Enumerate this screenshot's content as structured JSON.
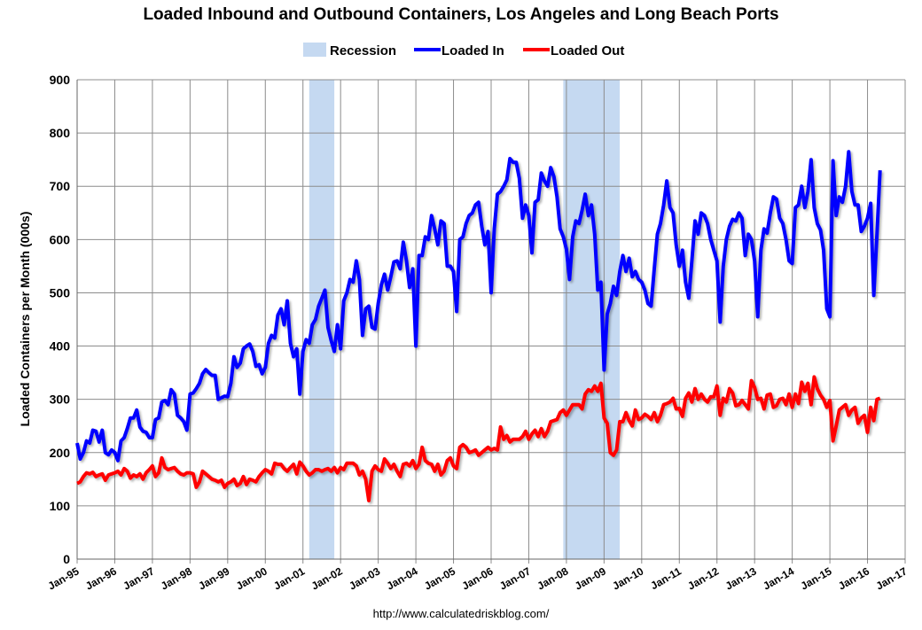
{
  "chart_data": {
    "type": "line",
    "title": "Loaded Inbound and Outbound Containers, Los Angeles and Long Beach Ports",
    "ylabel": "Loaded Containers per Month (000s)",
    "xlabel": "",
    "ylim": [
      0,
      900
    ],
    "yticks": [
      0,
      100,
      200,
      300,
      400,
      500,
      600,
      700,
      800,
      900
    ],
    "xticks": [
      "Jan-95",
      "Jan-96",
      "Jan-97",
      "Jan-98",
      "Jan-99",
      "Jan-00",
      "Jan-01",
      "Jan-02",
      "Jan-03",
      "Jan-04",
      "Jan-05",
      "Jan-06",
      "Jan-07",
      "Jan-08",
      "Jan-09",
      "Jan-10",
      "Jan-11",
      "Jan-12",
      "Jan-13",
      "Jan-14",
      "Jan-15",
      "Jan-16",
      "Jan-17"
    ],
    "x_frequency": "monthly",
    "grid": true,
    "legend_position": "top",
    "legend": [
      "Recession",
      "Loaded In",
      "Loaded Out"
    ],
    "recessions": [
      {
        "start": "2001-03",
        "end": "2001-11"
      },
      {
        "start": "2007-12",
        "end": "2009-06"
      }
    ],
    "series": [
      {
        "name": "Loaded In",
        "color": "#0000FF",
        "values_by_year": {
          "1995": [
            218,
            188,
            200,
            222,
            218,
            242,
            240,
            220,
            242,
            200,
            196,
            205
          ],
          "1996": [
            200,
            185,
            222,
            228,
            245,
            265,
            265,
            280,
            248,
            240,
            238,
            228
          ],
          "1997": [
            228,
            262,
            265,
            295,
            298,
            290,
            318,
            310,
            270,
            265,
            258,
            242
          ],
          "1998": [
            310,
            312,
            320,
            330,
            348,
            356,
            350,
            345,
            345,
            300,
            303,
            306
          ],
          "1999": [
            305,
            330,
            380,
            360,
            368,
            395,
            400,
            404,
            390,
            362,
            365,
            348
          ],
          "2000": [
            360,
            405,
            420,
            415,
            458,
            470,
            440,
            485,
            405,
            380,
            395,
            310
          ],
          "2001": [
            390,
            412,
            405,
            440,
            450,
            475,
            490,
            505,
            435,
            410,
            390,
            440
          ],
          "2002": [
            395,
            485,
            500,
            525,
            520,
            560,
            525,
            420,
            470,
            475,
            435,
            432
          ],
          "2003": [
            480,
            515,
            535,
            505,
            530,
            558,
            560,
            545,
            595,
            560,
            510,
            545
          ],
          "2004": [
            400,
            570,
            570,
            605,
            600,
            645,
            620,
            590,
            635,
            630,
            550,
            550
          ],
          "2005": [
            540,
            465,
            600,
            605,
            630,
            645,
            650,
            665,
            670,
            625,
            590,
            615
          ],
          "2006": [
            500,
            620,
            685,
            690,
            700,
            712,
            752,
            745,
            745,
            715,
            640,
            665
          ],
          "2007": [
            645,
            575,
            670,
            675,
            725,
            710,
            700,
            735,
            718,
            680,
            620,
            605
          ],
          "2008": [
            582,
            525,
            605,
            635,
            630,
            655,
            685,
            645,
            665,
            610,
            505,
            520
          ],
          "2009": [
            355,
            460,
            480,
            512,
            495,
            540,
            570,
            540,
            565,
            530,
            540,
            525
          ],
          "2010": [
            520,
            505,
            480,
            475,
            545,
            610,
            630,
            665,
            710,
            660,
            650,
            590
          ],
          "2011": [
            550,
            580,
            520,
            490,
            560,
            635,
            610,
            650,
            645,
            630,
            600,
            580
          ],
          "2012": [
            560,
            445,
            550,
            600,
            625,
            638,
            635,
            650,
            640,
            570,
            610,
            600
          ],
          "2013": [
            560,
            455,
            580,
            620,
            612,
            650,
            680,
            676,
            640,
            630,
            600,
            560
          ],
          "2014": [
            555,
            660,
            665,
            700,
            660,
            690,
            750,
            660,
            630,
            618,
            580,
            470
          ],
          "2015": [
            455,
            748,
            645,
            680,
            670,
            700,
            765,
            690,
            665,
            665,
            615,
            625
          ],
          "2016": [
            640,
            668,
            495,
            610,
            730
          ]
        }
      },
      {
        "name": "Loaded Out",
        "color": "#FF0000",
        "values_by_year": {
          "1995": [
            142,
            145,
            155,
            162,
            160,
            163,
            155,
            158,
            160,
            148,
            158,
            160
          ],
          "1996": [
            162,
            165,
            158,
            170,
            165,
            152,
            158,
            155,
            160,
            150,
            162,
            168
          ],
          "1997": [
            175,
            155,
            162,
            190,
            172,
            168,
            170,
            172,
            165,
            160,
            158,
            162
          ],
          "1998": [
            162,
            160,
            135,
            145,
            165,
            160,
            155,
            150,
            148,
            145,
            148,
            135
          ],
          "1999": [
            142,
            145,
            150,
            138,
            142,
            155,
            140,
            150,
            148,
            145,
            155,
            162
          ],
          "2000": [
            168,
            165,
            160,
            180,
            178,
            178,
            170,
            165,
            172,
            178,
            160,
            182
          ],
          "2001": [
            175,
            165,
            158,
            162,
            168,
            168,
            165,
            168,
            170,
            165,
            172,
            162
          ],
          "2002": [
            172,
            168,
            180,
            180,
            180,
            175,
            158,
            165,
            150,
            110,
            165,
            175
          ],
          "2003": [
            168,
            165,
            188,
            180,
            170,
            178,
            165,
            155,
            178,
            180,
            175,
            185
          ],
          "2004": [
            170,
            178,
            210,
            185,
            180,
            178,
            165,
            178,
            158,
            165,
            185,
            190
          ],
          "2005": [
            175,
            170,
            210,
            215,
            210,
            200,
            202,
            205,
            195,
            200,
            205,
            210
          ],
          "2006": [
            205,
            208,
            205,
            248,
            225,
            232,
            220,
            225,
            225,
            225,
            230,
            240
          ],
          "2007": [
            225,
            235,
            242,
            230,
            245,
            230,
            240,
            258,
            260,
            262,
            275,
            280
          ],
          "2008": [
            270,
            280,
            290,
            290,
            290,
            282,
            310,
            318,
            315,
            325,
            315,
            330
          ],
          "2009": [
            265,
            255,
            200,
            195,
            205,
            258,
            258,
            275,
            260,
            250,
            280,
            262
          ],
          "2010": [
            265,
            272,
            268,
            262,
            275,
            258,
            270,
            290,
            292,
            295,
            302,
            282
          ],
          "2011": [
            283,
            268,
            302,
            312,
            295,
            320,
            300,
            310,
            300,
            295,
            305,
            305
          ],
          "2012": [
            325,
            270,
            302,
            295,
            320,
            312,
            288,
            290,
            298,
            290,
            282,
            335
          ],
          "2013": [
            322,
            300,
            302,
            282,
            308,
            310,
            285,
            288,
            300,
            302,
            290,
            310
          ],
          "2014": [
            285,
            310,
            292,
            332,
            315,
            330,
            290,
            342,
            320,
            308,
            300,
            285
          ],
          "2015": [
            298,
            222,
            250,
            280,
            285,
            290,
            270,
            280,
            285,
            255,
            265,
            270
          ],
          "2016": [
            238,
            285,
            260,
            300,
            302
          ]
        }
      }
    ],
    "recession_color": "#C5D9F1",
    "source": "http://www.calculatedriskblog.com/"
  }
}
